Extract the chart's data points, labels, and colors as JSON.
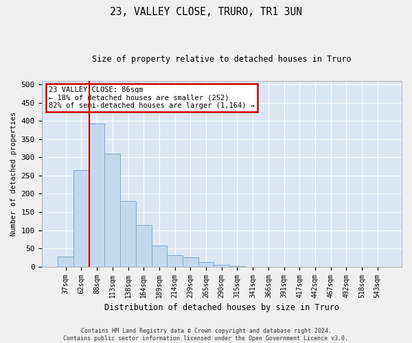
{
  "title": "23, VALLEY CLOSE, TRURO, TR1 3UN",
  "subtitle": "Size of property relative to detached houses in Truro",
  "xlabel": "Distribution of detached houses by size in Truro",
  "ylabel": "Number of detached properties",
  "bar_labels": [
    "37sqm",
    "62sqm",
    "88sqm",
    "113sqm",
    "138sqm",
    "164sqm",
    "189sqm",
    "214sqm",
    "239sqm",
    "265sqm",
    "290sqm",
    "315sqm",
    "341sqm",
    "366sqm",
    "391sqm",
    "417sqm",
    "442sqm",
    "467sqm",
    "492sqm",
    "518sqm",
    "543sqm"
  ],
  "bar_values": [
    28,
    265,
    392,
    310,
    180,
    115,
    57,
    31,
    25,
    13,
    5,
    1,
    0,
    0,
    0,
    0,
    0,
    0,
    0,
    0,
    0
  ],
  "bar_color": "#c5d8ee",
  "bar_edgecolor": "#7aaacf",
  "background_color": "#dce7f3",
  "grid_color": "#ffffff",
  "vline_xindex": 2,
  "vline_color": "#cc0000",
  "annotation_text": "23 VALLEY CLOSE: 86sqm\n← 18% of detached houses are smaller (252)\n82% of semi-detached houses are larger (1,164) →",
  "annotation_box_facecolor": "#ffffff",
  "annotation_box_edgecolor": "#cc0000",
  "ylim": [
    0,
    510
  ],
  "yticks": [
    0,
    50,
    100,
    150,
    200,
    250,
    300,
    350,
    400,
    450,
    500
  ],
  "footer": "Contains HM Land Registry data © Crown copyright and database right 2024.\nContains public sector information licensed under the Open Government Licence v3.0."
}
